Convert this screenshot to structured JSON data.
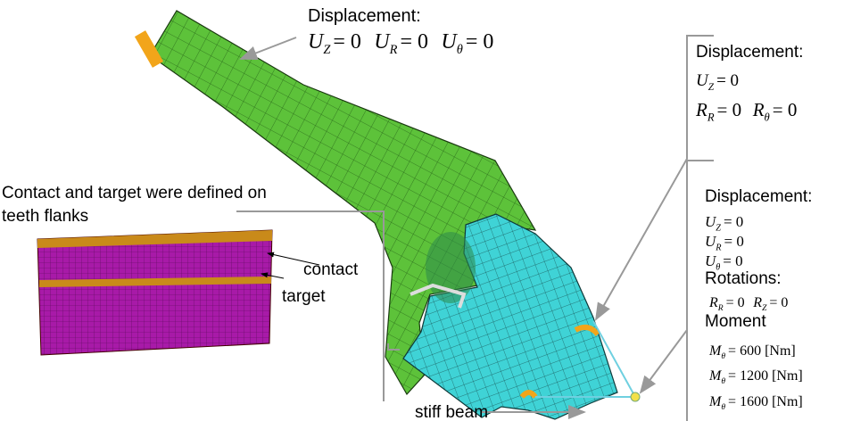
{
  "top_annotation": {
    "heading": "Displacement:",
    "lines": [
      [
        {
          "symbol": "U",
          "subscript": "Z",
          "rhs": "= 0"
        },
        {
          "symbol": "U",
          "subscript": "R",
          "rhs": "= 0"
        },
        {
          "symbol": "U",
          "subscript": "θ",
          "rhs": "= 0"
        }
      ]
    ]
  },
  "right_box_1": {
    "heading": "Displacement:",
    "lines": [
      [
        {
          "symbol": "U",
          "subscript": "Z",
          "rhs": "= 0"
        }
      ],
      [
        {
          "symbol": "R",
          "subscript": "R",
          "rhs": "= 0"
        },
        {
          "symbol": "R",
          "subscript": "θ",
          "rhs": "= 0"
        }
      ]
    ]
  },
  "right_box_2": {
    "heading": "Displacement:",
    "lines": [
      [
        {
          "symbol": "U",
          "subscript": "Z",
          "rhs": "= 0"
        }
      ],
      [
        {
          "symbol": "U",
          "subscript": "R",
          "rhs": "= 0"
        }
      ],
      [
        {
          "symbol": "U",
          "subscript": "θ",
          "rhs": "= 0"
        }
      ]
    ],
    "rotations_heading": "Rotations:",
    "rotation_lines": [
      [
        {
          "symbol": "R",
          "subscript": "R",
          "rhs": "= 0"
        },
        {
          "symbol": "R",
          "subscript": "Z",
          "rhs": "= 0"
        }
      ]
    ],
    "moment_heading": "Moment",
    "moment_lines": [
      [
        {
          "symbol": "M",
          "subscript": "θ",
          "rhs": "= 600 [Nm]"
        }
      ],
      [
        {
          "symbol": "M",
          "subscript": "θ",
          "rhs": "= 1200 [Nm]"
        }
      ],
      [
        {
          "symbol": "M",
          "subscript": "θ",
          "rhs": "= 1600 [Nm]"
        }
      ]
    ]
  },
  "contact_note": {
    "lines": [
      "Contact and target were defined on",
      "teeth flanks"
    ]
  },
  "labels": {
    "contact": "contact",
    "target": "target",
    "stiff_beam": "stiff beam"
  }
}
